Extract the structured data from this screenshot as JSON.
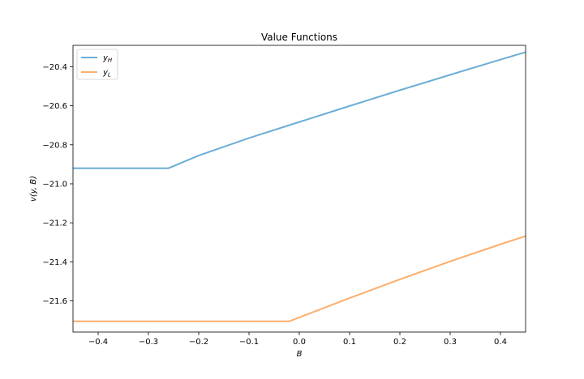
{
  "chart_data": {
    "type": "line",
    "title": "Value Functions",
    "xlabel": "B",
    "ylabel": "v(y, B)",
    "xlim": [
      -0.45,
      0.45
    ],
    "ylim": [
      -21.76,
      -20.29
    ],
    "x_ticks": [
      -0.4,
      -0.3,
      -0.2,
      -0.1,
      0.0,
      0.1,
      0.2,
      0.3,
      0.4
    ],
    "x_tick_labels": [
      "−0.4",
      "−0.3",
      "−0.2",
      "−0.1",
      "0.0",
      "0.1",
      "0.2",
      "0.3",
      "0.4"
    ],
    "y_ticks": [
      -21.6,
      -21.4,
      -21.2,
      -21.0,
      -20.8,
      -20.6,
      -20.4
    ],
    "y_tick_labels": [
      "−21.6",
      "−21.4",
      "−21.2",
      "−21.0",
      "−20.8",
      "−20.6",
      "−20.4"
    ],
    "grid": false,
    "legend_position": "top-left",
    "series": [
      {
        "name": "y",
        "subscript": "H",
        "color": "#6baed6",
        "x": [
          -0.45,
          -0.26,
          -0.2,
          -0.1,
          0.0,
          0.1,
          0.2,
          0.3,
          0.4,
          0.45
        ],
        "y": [
          -20.92,
          -20.92,
          -20.855,
          -20.765,
          -20.683,
          -20.601,
          -20.52,
          -20.441,
          -20.363,
          -20.325
        ]
      },
      {
        "name": "y",
        "subscript": "L",
        "color": "#fdae6b",
        "x": [
          -0.45,
          -0.02,
          0.0,
          0.1,
          0.2,
          0.3,
          0.4,
          0.45
        ],
        "y": [
          -21.705,
          -21.705,
          -21.685,
          -21.586,
          -21.49,
          -21.398,
          -21.31,
          -21.268
        ]
      }
    ]
  }
}
